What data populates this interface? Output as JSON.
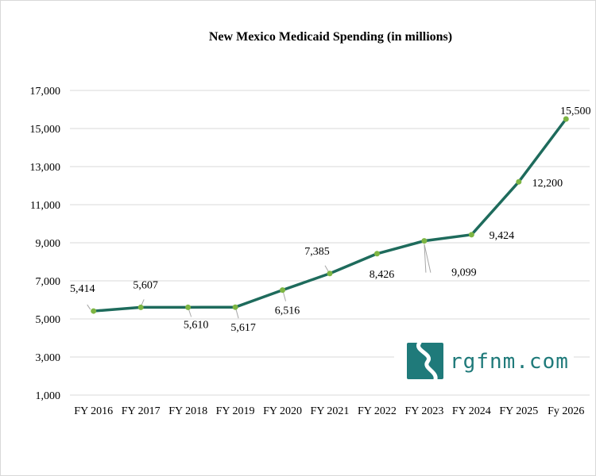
{
  "chart_data": {
    "type": "line",
    "title": "New Mexico Medicaid Spending (in millions)",
    "categories": [
      "FY 2016",
      "FY 2017",
      "FY 2018",
      "FY 2019",
      "FY 2020",
      "FY 2021",
      "FY 2022",
      "FY 2023",
      "FY 2024",
      "FY 2025",
      "Fy 2026"
    ],
    "values": [
      5414,
      5607,
      5610,
      5617,
      6516,
      7385,
      8426,
      9099,
      9424,
      12200,
      15500
    ],
    "data_labels": [
      "5,414",
      "5,607",
      "5,610",
      "5,617",
      "6,516",
      "7,385",
      "8,426",
      "9,099",
      "9,424",
      "12,200",
      "15,500"
    ],
    "y_ticks": [
      "1,000",
      "3,000",
      "5,000",
      "7,000",
      "9,000",
      "11,000",
      "13,000",
      "15,000",
      "17,000"
    ],
    "y_tick_values": [
      1000,
      3000,
      5000,
      7000,
      9000,
      11000,
      13000,
      15000,
      17000
    ],
    "ylim": [
      1000,
      17000
    ],
    "grid": true,
    "legend": "none",
    "colors": {
      "line": "#1e6b5c",
      "marker": "#7db543",
      "grid": "#d9d9d9"
    }
  },
  "logo": {
    "text": "rgfnm.com",
    "icon": "river-logo-icon",
    "color": "#1f7a7a"
  }
}
